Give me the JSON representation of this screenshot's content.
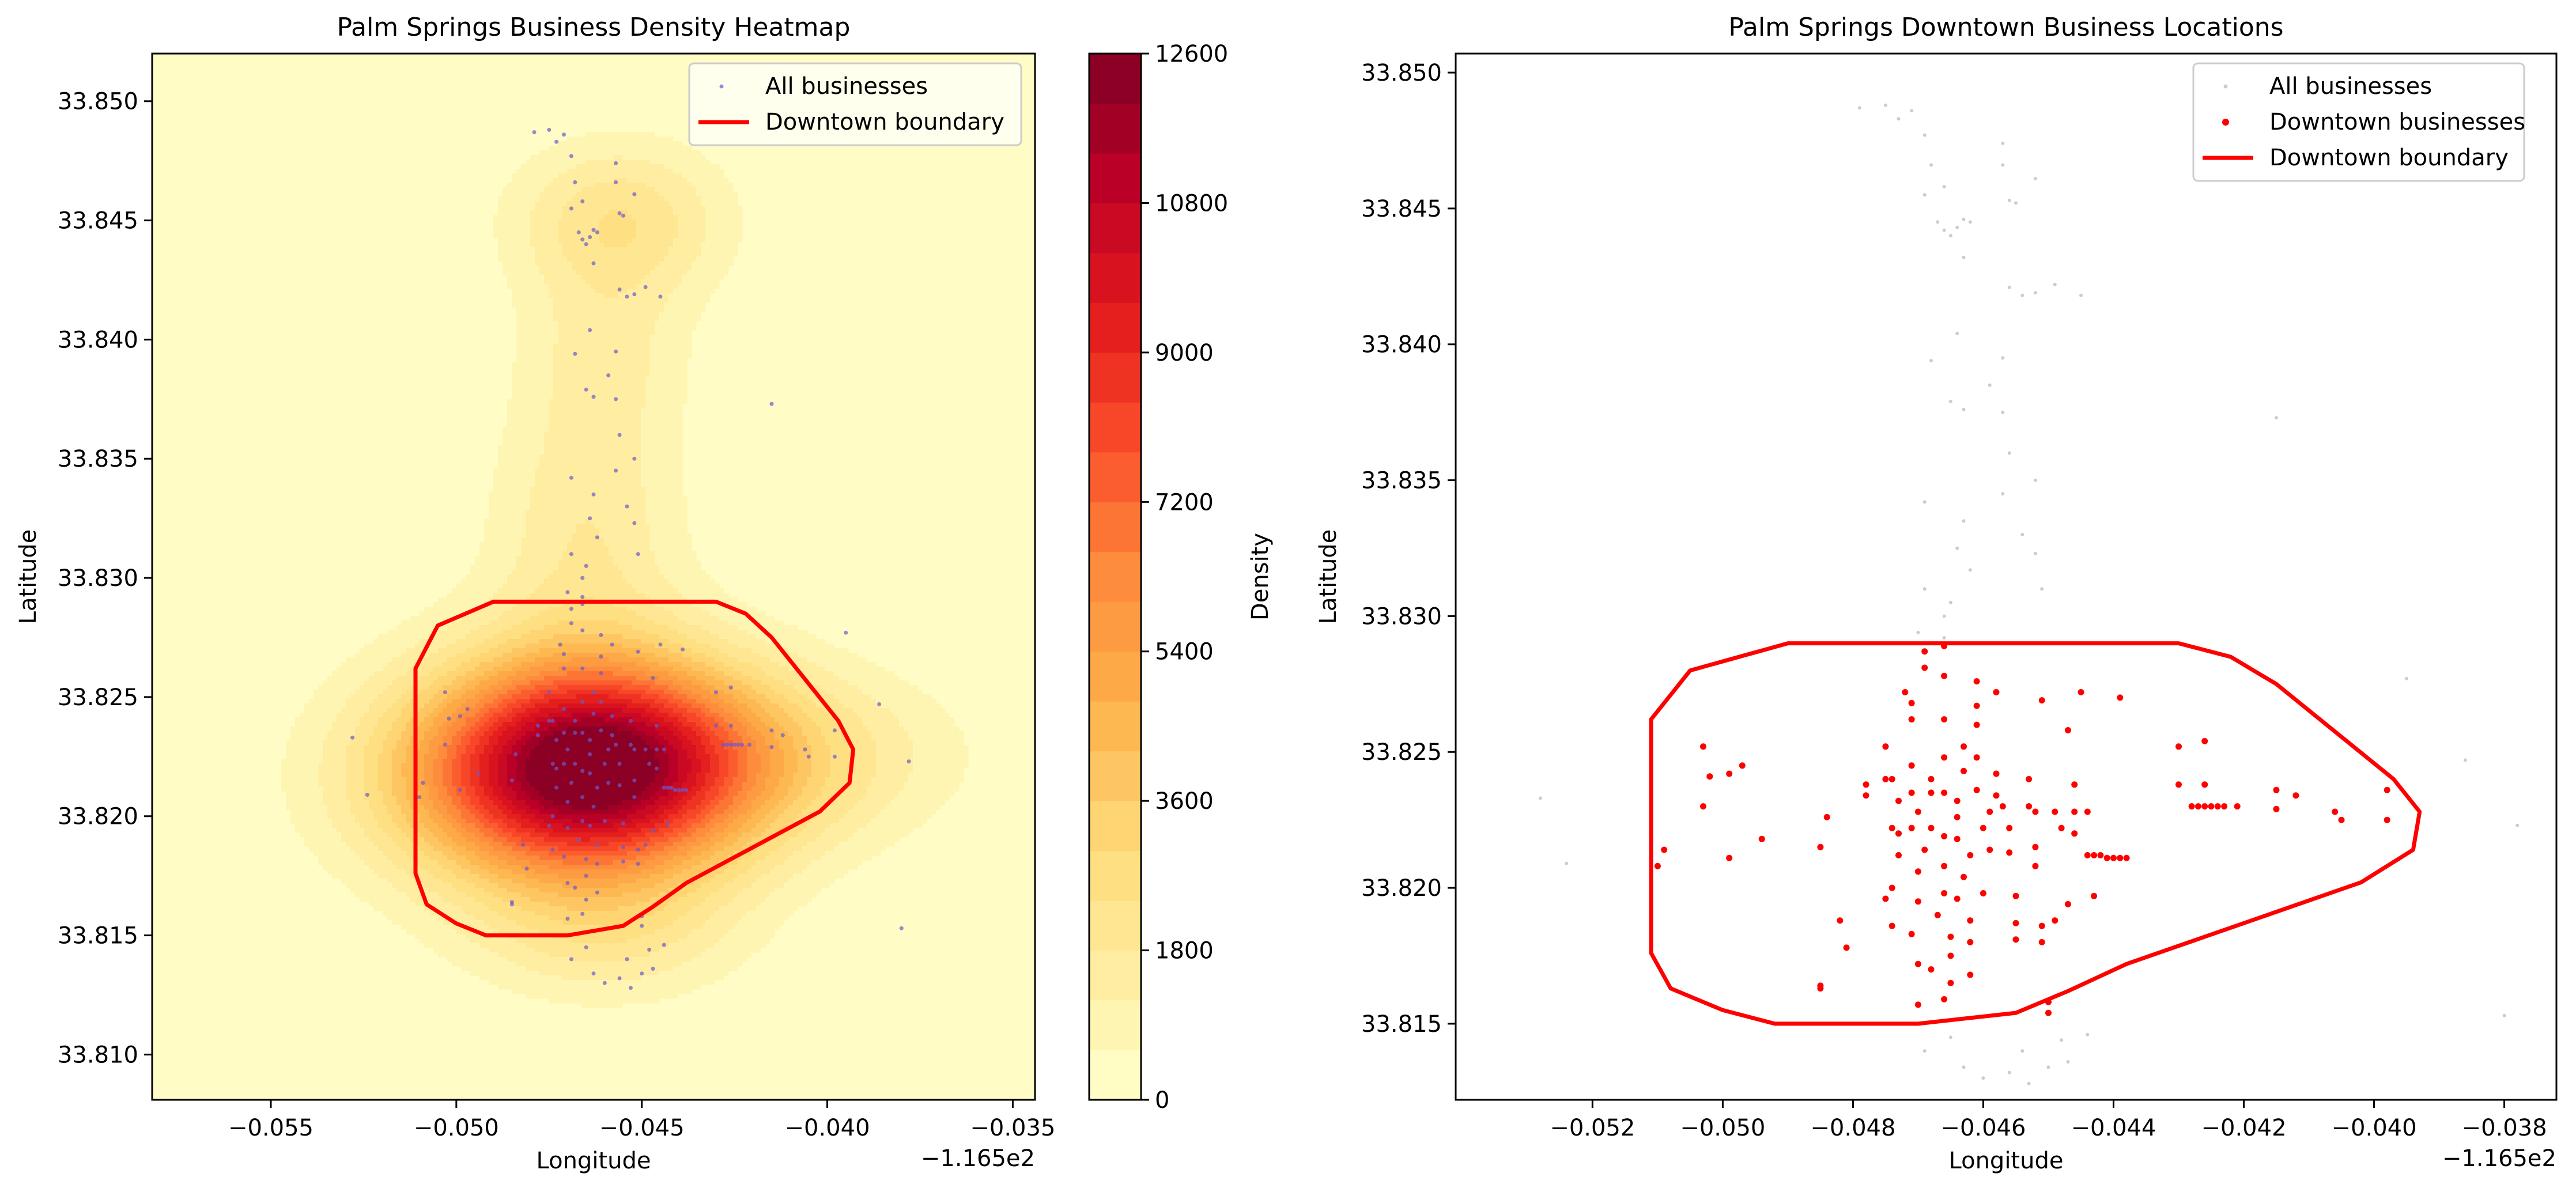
{
  "chart_data": [
    {
      "type": "heatmap",
      "title": "Palm Springs Business Density Heatmap",
      "xlabel": "Longitude",
      "ylabel": "Latitude",
      "x_offset_label": "−1.165e2",
      "xlim": [
        -0.0582,
        -0.0344
      ],
      "ylim": [
        33.8081,
        33.852
      ],
      "x_ticks": [
        -0.055,
        -0.05,
        -0.045,
        -0.04,
        -0.035
      ],
      "x_tick_labels": [
        "−0.055",
        "−0.050",
        "−0.045",
        "−0.040",
        "−0.035"
      ],
      "y_ticks": [
        33.81,
        33.815,
        33.82,
        33.825,
        33.83,
        33.835,
        33.84,
        33.845,
        33.85
      ],
      "y_tick_labels": [
        "33.810",
        "33.815",
        "33.820",
        "33.825",
        "33.830",
        "33.835",
        "33.840",
        "33.845",
        "33.850"
      ],
      "colorbar": {
        "label": "Density",
        "min": 0,
        "max": 12600,
        "levels": 21,
        "ticks": [
          0,
          1800,
          3600,
          5400,
          7200,
          9000,
          10800,
          12600
        ],
        "tick_labels": [
          "0",
          "1800",
          "3600",
          "5400",
          "7200",
          "9000",
          "10800",
          "12600"
        ],
        "colormap": "YlOrRd"
      },
      "density_centers": [
        {
          "x": -0.0464,
          "y": 33.822,
          "peak": 12000,
          "sx": 0.003,
          "sy": 0.0032
        },
        {
          "x": -0.0456,
          "y": 33.845,
          "peak": 2300,
          "sx": 0.002,
          "sy": 0.0023
        },
        {
          "x": -0.0465,
          "y": 33.832,
          "peak": 1700,
          "sx": 0.0018,
          "sy": 0.004
        },
        {
          "x": -0.046,
          "y": 33.8395,
          "peak": 1200,
          "sx": 0.0016,
          "sy": 0.0028
        },
        {
          "x": -0.042,
          "y": 33.8225,
          "peak": 2200,
          "sx": 0.0035,
          "sy": 0.0025
        },
        {
          "x": -0.0495,
          "y": 33.8215,
          "peak": 1500,
          "sx": 0.003,
          "sy": 0.003
        },
        {
          "x": -0.046,
          "y": 33.815,
          "peak": 1500,
          "sx": 0.0025,
          "sy": 0.002
        }
      ],
      "legend": {
        "position": "upper right",
        "entries": [
          "All businesses",
          "Downtown boundary"
        ]
      },
      "series": [
        {
          "name": "All businesses",
          "style": "points",
          "color": "#6a5acd",
          "ref": "all_businesses"
        },
        {
          "name": "Downtown boundary",
          "style": "line",
          "color": "#ff0000",
          "ref": "boundary"
        }
      ]
    },
    {
      "type": "scatter",
      "title": "Palm Springs Downtown Business Locations",
      "xlabel": "Longitude",
      "ylabel": "Latitude",
      "x_offset_label": "−1.165e2",
      "xlim": [
        -0.0541,
        -0.0372
      ],
      "ylim": [
        33.8122,
        33.8507
      ],
      "x_ticks": [
        -0.052,
        -0.05,
        -0.048,
        -0.046,
        -0.044,
        -0.042,
        -0.04,
        -0.038
      ],
      "x_tick_labels": [
        "−0.052",
        "−0.050",
        "−0.048",
        "−0.046",
        "−0.044",
        "−0.042",
        "−0.040",
        "−0.038"
      ],
      "y_ticks": [
        33.815,
        33.82,
        33.825,
        33.83,
        33.835,
        33.84,
        33.845,
        33.85
      ],
      "y_tick_labels": [
        "33.815",
        "33.820",
        "33.825",
        "33.830",
        "33.835",
        "33.840",
        "33.845",
        "33.850"
      ],
      "legend": {
        "position": "upper right",
        "entries": [
          "All businesses",
          "Downtown businesses",
          "Downtown boundary"
        ]
      },
      "series": [
        {
          "name": "All businesses",
          "style": "points",
          "color": "#cccccc",
          "ref": "all_businesses"
        },
        {
          "name": "Downtown businesses",
          "style": "points",
          "color": "#ff0000",
          "ref": "downtown_businesses"
        },
        {
          "name": "Downtown boundary",
          "style": "line",
          "color": "#ff0000",
          "ref": "boundary"
        }
      ]
    }
  ],
  "boundary": [
    [
      -0.0511,
      33.8262
    ],
    [
      -0.0505,
      33.828
    ],
    [
      -0.049,
      33.829
    ],
    [
      -0.043,
      33.829
    ],
    [
      -0.0422,
      33.8285
    ],
    [
      -0.0415,
      33.8275
    ],
    [
      -0.0397,
      33.824
    ],
    [
      -0.0393,
      33.8228
    ],
    [
      -0.0394,
      33.8214
    ],
    [
      -0.0402,
      33.8202
    ],
    [
      -0.0438,
      33.8172
    ],
    [
      -0.0447,
      33.8162
    ],
    [
      -0.0455,
      33.8154
    ],
    [
      -0.047,
      33.815
    ],
    [
      -0.0492,
      33.815
    ],
    [
      -0.05,
      33.8155
    ],
    [
      -0.0508,
      33.8163
    ],
    [
      -0.0511,
      33.8176
    ],
    [
      -0.0511,
      33.8262
    ]
  ],
  "downtown_businesses": [
    [
      -0.0503,
      33.8252
    ],
    [
      -0.0503,
      33.823
    ],
    [
      -0.0499,
      33.8242
    ],
    [
      -0.0497,
      33.8245
    ],
    [
      -0.0502,
      33.8241
    ],
    [
      -0.0509,
      33.8214
    ],
    [
      -0.051,
      33.8208
    ],
    [
      -0.0499,
      33.8211
    ],
    [
      -0.0494,
      33.8218
    ],
    [
      -0.0484,
      33.8226
    ],
    [
      -0.0485,
      33.8215
    ],
    [
      -0.0482,
      33.8188
    ],
    [
      -0.0481,
      33.8178
    ],
    [
      -0.0485,
      33.8163
    ],
    [
      -0.0485,
      33.8164
    ],
    [
      -0.0478,
      33.8238
    ],
    [
      -0.0478,
      33.8234
    ],
    [
      -0.0475,
      33.824
    ],
    [
      -0.0475,
      33.8252
    ],
    [
      -0.0474,
      33.824
    ],
    [
      -0.0474,
      33.8222
    ],
    [
      -0.0473,
      33.822
    ],
    [
      -0.0473,
      33.8212
    ],
    [
      -0.0474,
      33.82
    ],
    [
      -0.0474,
      33.8186
    ],
    [
      -0.0472,
      33.8272
    ],
    [
      -0.0471,
      33.8262
    ],
    [
      -0.0471,
      33.8245
    ],
    [
      -0.0471,
      33.8235
    ],
    [
      -0.0471,
      33.8222
    ],
    [
      -0.047,
      33.8206
    ],
    [
      -0.047,
      33.8195
    ],
    [
      -0.0471,
      33.8183
    ],
    [
      -0.047,
      33.8172
    ],
    [
      -0.047,
      33.8157
    ],
    [
      -0.0468,
      33.8222
    ],
    [
      -0.0468,
      33.824
    ],
    [
      -0.0468,
      33.8235
    ],
    [
      -0.0469,
      33.8287
    ],
    [
      -0.0469,
      33.8281
    ],
    [
      -0.0471,
      33.8268
    ],
    [
      -0.0466,
      33.8289
    ],
    [
      -0.0466,
      33.8278
    ],
    [
      -0.0466,
      33.8262
    ],
    [
      -0.0466,
      33.8248
    ],
    [
      -0.0466,
      33.8235
    ],
    [
      -0.0466,
      33.8219
    ],
    [
      -0.0466,
      33.8208
    ],
    [
      -0.0466,
      33.8198
    ],
    [
      -0.0465,
      33.8182
    ],
    [
      -0.0465,
      33.8175
    ],
    [
      -0.0465,
      33.8165
    ],
    [
      -0.0464,
      33.8232
    ],
    [
      -0.0464,
      33.8226
    ],
    [
      -0.0464,
      33.8218
    ],
    [
      -0.0463,
      33.8252
    ],
    [
      -0.0463,
      33.8243
    ],
    [
      -0.0462,
      33.8212
    ],
    [
      -0.0462,
      33.8188
    ],
    [
      -0.0462,
      33.818
    ],
    [
      -0.0462,
      33.8168
    ],
    [
      -0.0461,
      33.8276
    ],
    [
      -0.0461,
      33.8267
    ],
    [
      -0.0461,
      33.826
    ],
    [
      -0.0461,
      33.8236
    ],
    [
      -0.046,
      33.8222
    ],
    [
      -0.046,
      33.8198
    ],
    [
      -0.0459,
      33.8228
    ],
    [
      -0.0459,
      33.8214
    ],
    [
      -0.0458,
      33.8272
    ],
    [
      -0.0458,
      33.8234
    ],
    [
      -0.0457,
      33.823
    ],
    [
      -0.0456,
      33.8222
    ],
    [
      -0.0456,
      33.8213
    ],
    [
      -0.0455,
      33.8197
    ],
    [
      -0.0455,
      33.8187
    ],
    [
      -0.0453,
      33.824
    ],
    [
      -0.0453,
      33.823
    ],
    [
      -0.0452,
      33.8228
    ],
    [
      -0.0452,
      33.8215
    ],
    [
      -0.0451,
      33.8269
    ],
    [
      -0.0451,
      33.8186
    ],
    [
      -0.0451,
      33.818
    ],
    [
      -0.045,
      33.8154
    ],
    [
      -0.045,
      33.8158
    ],
    [
      -0.0449,
      33.8228
    ],
    [
      -0.0448,
      33.8222
    ],
    [
      -0.0447,
      33.8258
    ],
    [
      -0.0446,
      33.8238
    ],
    [
      -0.0446,
      33.822
    ],
    [
      -0.0446,
      33.8228
    ],
    [
      -0.0445,
      33.8272
    ],
    [
      -0.0444,
      33.8228
    ],
    [
      -0.0444,
      33.8212
    ],
    [
      -0.0443,
      33.8212
    ],
    [
      -0.0442,
      33.8212
    ],
    [
      -0.0441,
      33.8211
    ],
    [
      -0.044,
      33.8211
    ],
    [
      -0.0439,
      33.827
    ],
    [
      -0.0439,
      33.8211
    ],
    [
      -0.0443,
      33.8197
    ],
    [
      -0.0447,
      33.8194
    ],
    [
      -0.0449,
      33.8188
    ],
    [
      -0.0455,
      33.8181
    ],
    [
      -0.0464,
      33.8196
    ],
    [
      -0.0466,
      33.8159
    ],
    [
      -0.043,
      33.8252
    ],
    [
      -0.043,
      33.8238
    ],
    [
      -0.0426,
      33.8254
    ],
    [
      -0.0426,
      33.8238
    ],
    [
      -0.0428,
      33.823
    ],
    [
      -0.0427,
      33.823
    ],
    [
      -0.0426,
      33.823
    ],
    [
      -0.0425,
      33.823
    ],
    [
      -0.0424,
      33.823
    ],
    [
      -0.0423,
      33.823
    ],
    [
      -0.0421,
      33.823
    ],
    [
      -0.0415,
      33.8236
    ],
    [
      -0.0415,
      33.8229
    ],
    [
      -0.0412,
      33.8234
    ],
    [
      -0.0406,
      33.8228
    ],
    [
      -0.0405,
      33.8225
    ],
    [
      -0.0398,
      33.8236
    ],
    [
      -0.0398,
      33.8225
    ],
    [
      -0.0438,
      33.8211
    ],
    [
      -0.0475,
      33.8196
    ],
    [
      -0.0469,
      33.8214
    ],
    [
      -0.0467,
      33.819
    ],
    [
      -0.0468,
      33.817
    ],
    [
      -0.0463,
      33.8204
    ],
    [
      -0.0452,
      33.8208
    ],
    [
      -0.0458,
      33.8242
    ],
    [
      -0.0461,
      33.8248
    ],
    [
      -0.0473,
      33.8232
    ],
    [
      -0.047,
      33.8228
    ]
  ],
  "outside_businesses": [
    [
      -0.0528,
      33.8233
    ],
    [
      -0.0524,
      33.8209
    ],
    [
      -0.0378,
      33.8223
    ],
    [
      -0.0386,
      33.8247
    ],
    [
      -0.038,
      33.8153
    ],
    [
      -0.0395,
      33.8277
    ],
    [
      -0.0415,
      33.8373
    ],
    [
      -0.0475,
      33.8488
    ],
    [
      -0.0473,
      33.8483
    ],
    [
      -0.0471,
      33.8486
    ],
    [
      -0.0469,
      33.8477
    ],
    [
      -0.0468,
      33.8466
    ],
    [
      -0.0466,
      33.8458
    ],
    [
      -0.0469,
      33.8455
    ],
    [
      -0.0457,
      33.8474
    ],
    [
      -0.0457,
      33.8466
    ],
    [
      -0.0456,
      33.8453
    ],
    [
      -0.0455,
      33.8452
    ],
    [
      -0.0452,
      33.8461
    ],
    [
      -0.0479,
      33.8487
    ],
    [
      -0.0467,
      33.8445
    ],
    [
      -0.0466,
      33.8442
    ],
    [
      -0.0465,
      33.844
    ],
    [
      -0.0464,
      33.8443
    ],
    [
      -0.0463,
      33.8446
    ],
    [
      -0.0462,
      33.8445
    ],
    [
      -0.0463,
      33.8432
    ],
    [
      -0.0456,
      33.8421
    ],
    [
      -0.0454,
      33.8418
    ],
    [
      -0.0452,
      33.8419
    ],
    [
      -0.0449,
      33.8422
    ],
    [
      -0.0445,
      33.8418
    ],
    [
      -0.0457,
      33.8395
    ],
    [
      -0.0464,
      33.8404
    ],
    [
      -0.0459,
      33.8385
    ],
    [
      -0.0457,
      33.8375
    ],
    [
      -0.0463,
      33.8376
    ],
    [
      -0.0468,
      33.8394
    ],
    [
      -0.0465,
      33.8379
    ],
    [
      -0.0456,
      33.836
    ],
    [
      -0.0457,
      33.8345
    ],
    [
      -0.0452,
      33.835
    ],
    [
      -0.0463,
      33.8335
    ],
    [
      -0.0464,
      33.8325
    ],
    [
      -0.0462,
      33.8317
    ],
    [
      -0.0454,
      33.833
    ],
    [
      -0.0452,
      33.8323
    ],
    [
      -0.0465,
      33.8305
    ],
    [
      -0.0466,
      33.83
    ],
    [
      -0.0451,
      33.831
    ],
    [
      -0.0469,
      33.8342
    ],
    [
      -0.0469,
      33.831
    ],
    [
      -0.0466,
      33.8292
    ],
    [
      -0.047,
      33.8294
    ],
    [
      -0.0463,
      33.8134
    ],
    [
      -0.046,
      33.813
    ],
    [
      -0.0456,
      33.8132
    ],
    [
      -0.0453,
      33.8128
    ],
    [
      -0.045,
      33.8134
    ],
    [
      -0.0447,
      33.8136
    ],
    [
      -0.0454,
      33.814
    ],
    [
      -0.0465,
      33.8145
    ],
    [
      -0.0448,
      33.8144
    ],
    [
      -0.0444,
      33.8146
    ],
    [
      -0.0469,
      33.814
    ]
  ],
  "palette": {
    "boundary_color": "#ff0000",
    "all_businesses_heatmap_color": "#6a5acd",
    "all_businesses_scatter_color": "#cccccc",
    "downtown_color": "#ff0000"
  }
}
